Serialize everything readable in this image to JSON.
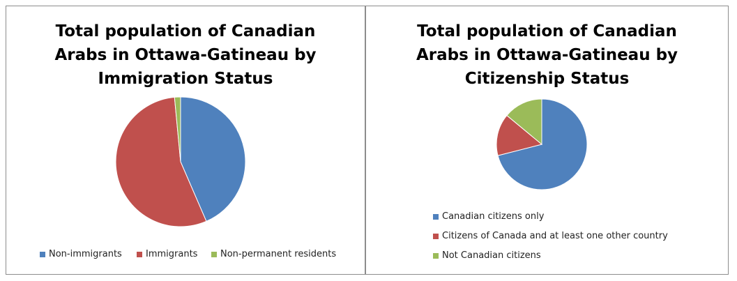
{
  "chart_data": [
    {
      "type": "pie",
      "title": "Total population of Canadian Arabs in Ottawa-Gatineau by Immigration Status",
      "legend_position": "bottom",
      "series": [
        {
          "name": "Non-immigrants",
          "value": 43.5,
          "color": "#4f81bd"
        },
        {
          "name": "Immigrants",
          "value": 55.0,
          "color": "#c0504d"
        },
        {
          "name": "Non-permanent residents",
          "value": 1.5,
          "color": "#9bbb59"
        }
      ]
    },
    {
      "type": "pie",
      "title": "Total population of Canadian Arabs in Ottawa-Gatineau by Citizenship Status",
      "legend_position": "bottom",
      "series": [
        {
          "name": "Canadian citizens only",
          "value": 71.0,
          "color": "#4f81bd"
        },
        {
          "name": "Citizens of Canada and at least one other country",
          "value": 15.0,
          "color": "#c0504d"
        },
        {
          "name": "Not Canadian citizens",
          "value": 14.0,
          "color": "#9bbb59"
        }
      ]
    }
  ]
}
